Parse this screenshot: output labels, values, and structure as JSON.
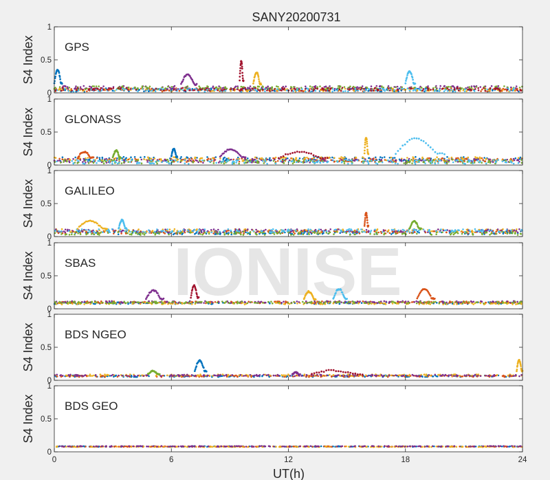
{
  "chart_data": {
    "type": "scatter",
    "title": "SANY20200731",
    "xlabel": "UT(h)",
    "ylabel": "S4 Index",
    "xlim": [
      0,
      24
    ],
    "ylim": [
      0,
      1
    ],
    "xticks": [
      "0",
      "6",
      "12",
      "18",
      "24"
    ],
    "yticks": [
      "0",
      "0.5",
      "1"
    ],
    "watermark": "IONISE",
    "series_colors": [
      "#0072BD",
      "#D95319",
      "#EDB120",
      "#7E2F8E",
      "#77AC30",
      "#4DBEEE",
      "#A2142F"
    ],
    "panels": [
      {
        "label": "GPS",
        "baseline": 0.06,
        "spread": 0.05,
        "series_count": 7,
        "features": [
          {
            "x_start": 0.0,
            "x_end": 0.4,
            "peak": 0.35
          },
          {
            "x_start": 6.5,
            "x_end": 7.3,
            "peak": 0.28
          },
          {
            "x_start": 9.5,
            "x_end": 9.7,
            "peak": 0.48
          },
          {
            "x_start": 10.2,
            "x_end": 10.6,
            "peak": 0.31
          },
          {
            "x_start": 18.0,
            "x_end": 18.5,
            "peak": 0.33
          }
        ]
      },
      {
        "label": "GLONASS",
        "baseline": 0.07,
        "spread": 0.06,
        "series_count": 6,
        "features": [
          {
            "x_start": 1.2,
            "x_end": 2.0,
            "peak": 0.2
          },
          {
            "x_start": 3.0,
            "x_end": 3.4,
            "peak": 0.22
          },
          {
            "x_start": 6.0,
            "x_end": 6.3,
            "peak": 0.25
          },
          {
            "x_start": 8.5,
            "x_end": 9.8,
            "peak": 0.24
          },
          {
            "x_start": 11.5,
            "x_end": 14.0,
            "peak": 0.2
          },
          {
            "x_start": 15.9,
            "x_end": 16.1,
            "peak": 0.42
          },
          {
            "x_start": 17.5,
            "x_end": 20.0,
            "peak": 0.4
          }
        ]
      },
      {
        "label": "GALILEO",
        "baseline": 0.07,
        "spread": 0.05,
        "series_count": 6,
        "features": [
          {
            "x_start": 1.2,
            "x_end": 2.7,
            "peak": 0.24
          },
          {
            "x_start": 3.3,
            "x_end": 3.7,
            "peak": 0.25
          },
          {
            "x_start": 15.9,
            "x_end": 16.1,
            "peak": 0.36
          },
          {
            "x_start": 18.2,
            "x_end": 18.8,
            "peak": 0.23
          }
        ]
      },
      {
        "label": "SBAS",
        "baseline": 0.09,
        "spread": 0.03,
        "series_count": 5,
        "features": [
          {
            "x_start": 4.7,
            "x_end": 5.6,
            "peak": 0.28
          },
          {
            "x_start": 7.0,
            "x_end": 7.4,
            "peak": 0.35
          },
          {
            "x_start": 12.8,
            "x_end": 13.4,
            "peak": 0.26
          },
          {
            "x_start": 14.3,
            "x_end": 15.0,
            "peak": 0.3
          },
          {
            "x_start": 18.6,
            "x_end": 19.5,
            "peak": 0.3
          }
        ]
      },
      {
        "label": "BDS NGEO",
        "baseline": 0.07,
        "spread": 0.025,
        "series_count": 4,
        "features": [
          {
            "x_start": 4.8,
            "x_end": 5.4,
            "peak": 0.14
          },
          {
            "x_start": 7.2,
            "x_end": 7.8,
            "peak": 0.3
          },
          {
            "x_start": 12.2,
            "x_end": 12.6,
            "peak": 0.12
          },
          {
            "x_start": 13.2,
            "x_end": 15.8,
            "peak": 0.15
          },
          {
            "x_start": 23.7,
            "x_end": 24.0,
            "peak": 0.3
          }
        ]
      },
      {
        "label": "BDS GEO",
        "baseline": 0.08,
        "spread": 0.01,
        "series_count": 4,
        "features": []
      }
    ]
  }
}
